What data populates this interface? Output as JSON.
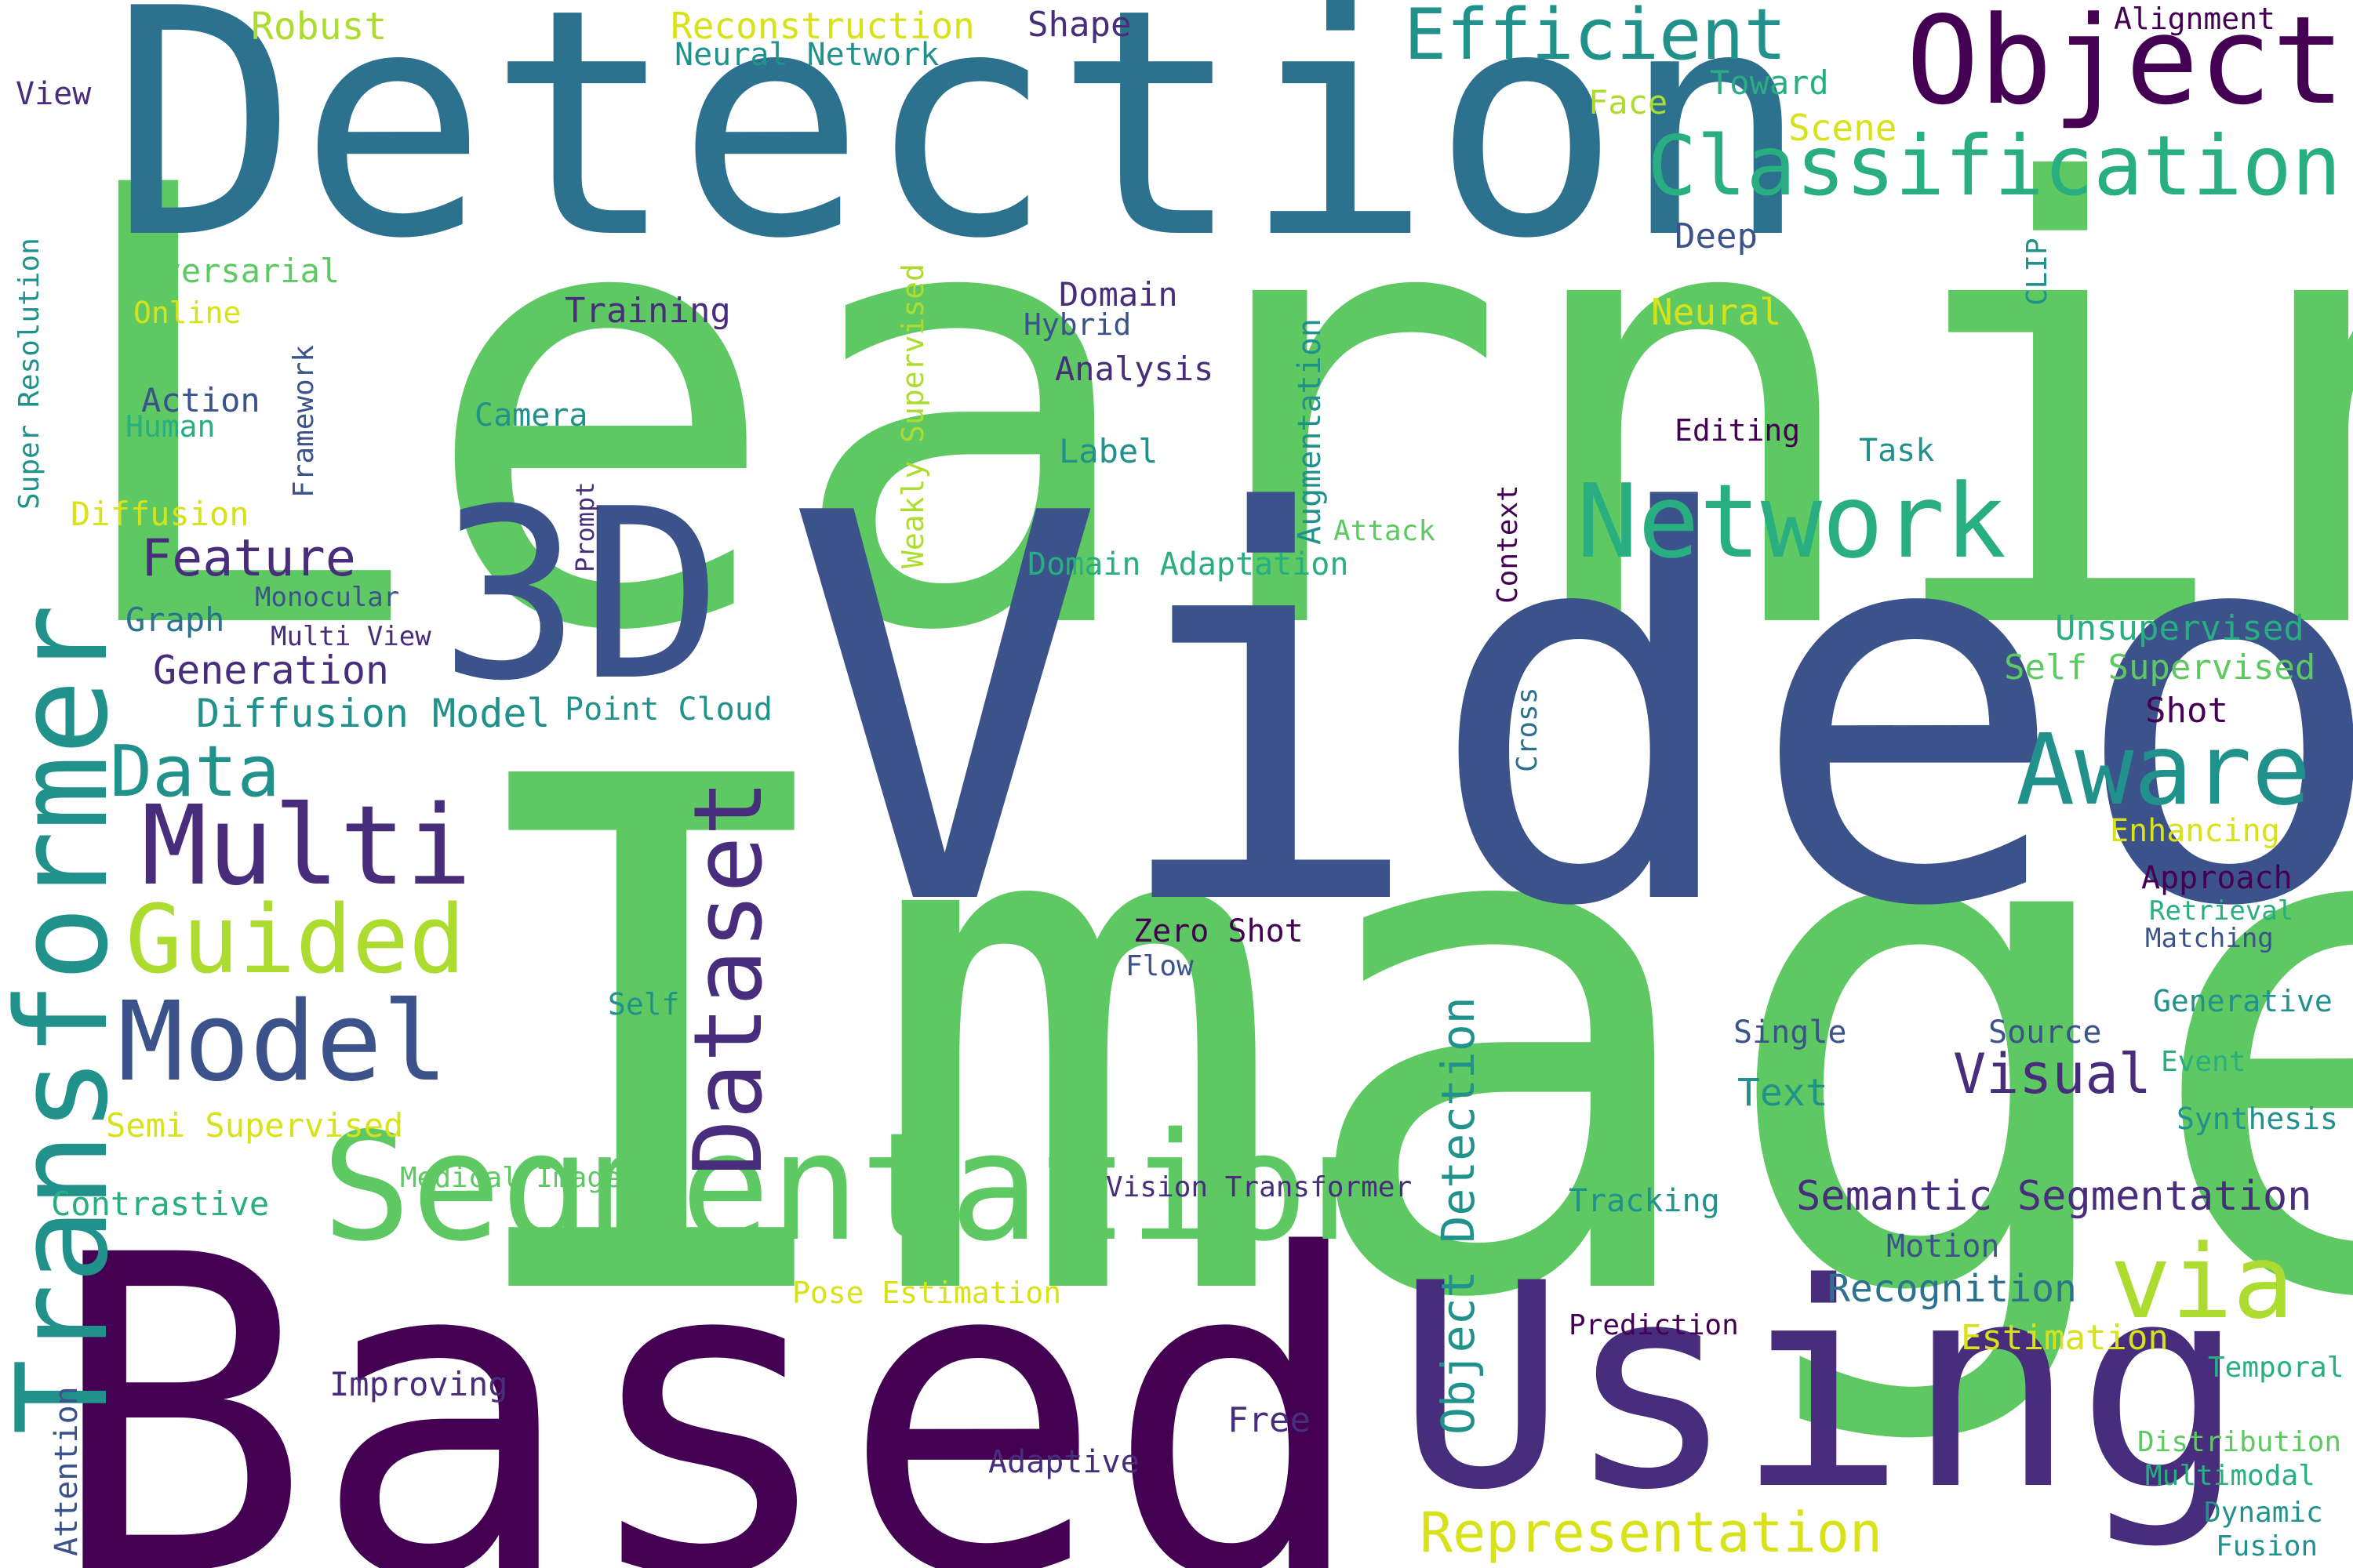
{
  "palette": {
    "dark_purple": "#440154",
    "indigo": "#472d7b",
    "blue": "#3b528b",
    "steel_blue": "#2c728e",
    "teal": "#21918c",
    "sea_green": "#28ae80",
    "green": "#5ec962",
    "lime": "#addc30",
    "yellow": "#d8e219"
  },
  "words": [
    {
      "text": "Learning"
    },
    {
      "text": "Image"
    },
    {
      "text": "Video"
    },
    {
      "text": "Based"
    },
    {
      "text": "Detection"
    },
    {
      "text": "Using"
    },
    {
      "text": "3D"
    },
    {
      "text": "Segmentation"
    },
    {
      "text": "Transformer"
    },
    {
      "text": "Object"
    },
    {
      "text": "Network"
    },
    {
      "text": "Classification"
    },
    {
      "text": "Aware"
    },
    {
      "text": "Dataset"
    },
    {
      "text": "Multi"
    },
    {
      "text": "via"
    },
    {
      "text": "Model"
    },
    {
      "text": "Guided"
    },
    {
      "text": "Efficient"
    },
    {
      "text": "Data"
    },
    {
      "text": "Representation"
    },
    {
      "text": "Object Detection"
    },
    {
      "text": "Feature"
    },
    {
      "text": "Semantic Segmentation"
    },
    {
      "text": "Visual"
    },
    {
      "text": "Diffusion Model"
    },
    {
      "text": "Recognition"
    },
    {
      "text": "Generation"
    },
    {
      "text": "Unsupervised"
    },
    {
      "text": "Self Supervised"
    },
    {
      "text": "Estimation"
    },
    {
      "text": "Weakly Supervised"
    },
    {
      "text": "Shape"
    },
    {
      "text": "Robust"
    },
    {
      "text": "Reconstruction"
    },
    {
      "text": "Neural Network"
    },
    {
      "text": "Alignment"
    },
    {
      "text": "View"
    },
    {
      "text": "Face"
    },
    {
      "text": "Toward"
    },
    {
      "text": "Scene"
    },
    {
      "text": "Deep"
    },
    {
      "text": "CLIP"
    },
    {
      "text": "Neural"
    },
    {
      "text": "Super Resolution"
    },
    {
      "text": "Adversarial"
    },
    {
      "text": "Online"
    },
    {
      "text": "Training"
    },
    {
      "text": "Domain"
    },
    {
      "text": "Hybrid"
    },
    {
      "text": "Analysis"
    },
    {
      "text": "Augmentation"
    },
    {
      "text": "Framework"
    },
    {
      "text": "Action"
    },
    {
      "text": "Human"
    },
    {
      "text": "Camera"
    },
    {
      "text": "Editing"
    },
    {
      "text": "Task"
    },
    {
      "text": "Label"
    },
    {
      "text": "Prompt"
    },
    {
      "text": "Context"
    },
    {
      "text": "Diffusion"
    },
    {
      "text": "Attack"
    },
    {
      "text": "Domain Adaptation"
    },
    {
      "text": "Monocular"
    },
    {
      "text": "Graph"
    },
    {
      "text": "Multi View"
    },
    {
      "text": "Point Cloud"
    },
    {
      "text": "Cross"
    },
    {
      "text": "Shot"
    },
    {
      "text": "Enhancing"
    },
    {
      "text": "Approach"
    },
    {
      "text": "Retrieval"
    },
    {
      "text": "Matching"
    },
    {
      "text": "Zero Shot"
    },
    {
      "text": "Flow"
    },
    {
      "text": "Self"
    },
    {
      "text": "Generative"
    },
    {
      "text": "Single"
    },
    {
      "text": "Source"
    },
    {
      "text": "Event"
    },
    {
      "text": "Text"
    },
    {
      "text": "Synthesis"
    },
    {
      "text": "Semi Supervised"
    },
    {
      "text": "Medical Image"
    },
    {
      "text": "Vision Transformer"
    },
    {
      "text": "Contrastive"
    },
    {
      "text": "Tracking"
    },
    {
      "text": "Motion"
    },
    {
      "text": "Pose Estimation"
    },
    {
      "text": "Prediction"
    },
    {
      "text": "Temporal"
    },
    {
      "text": "Attention"
    },
    {
      "text": "Improving"
    },
    {
      "text": "Free"
    },
    {
      "text": "Adaptive"
    },
    {
      "text": "Distribution"
    },
    {
      "text": "Multimodal"
    },
    {
      "text": "Dynamic"
    },
    {
      "text": "Fusion"
    }
  ]
}
